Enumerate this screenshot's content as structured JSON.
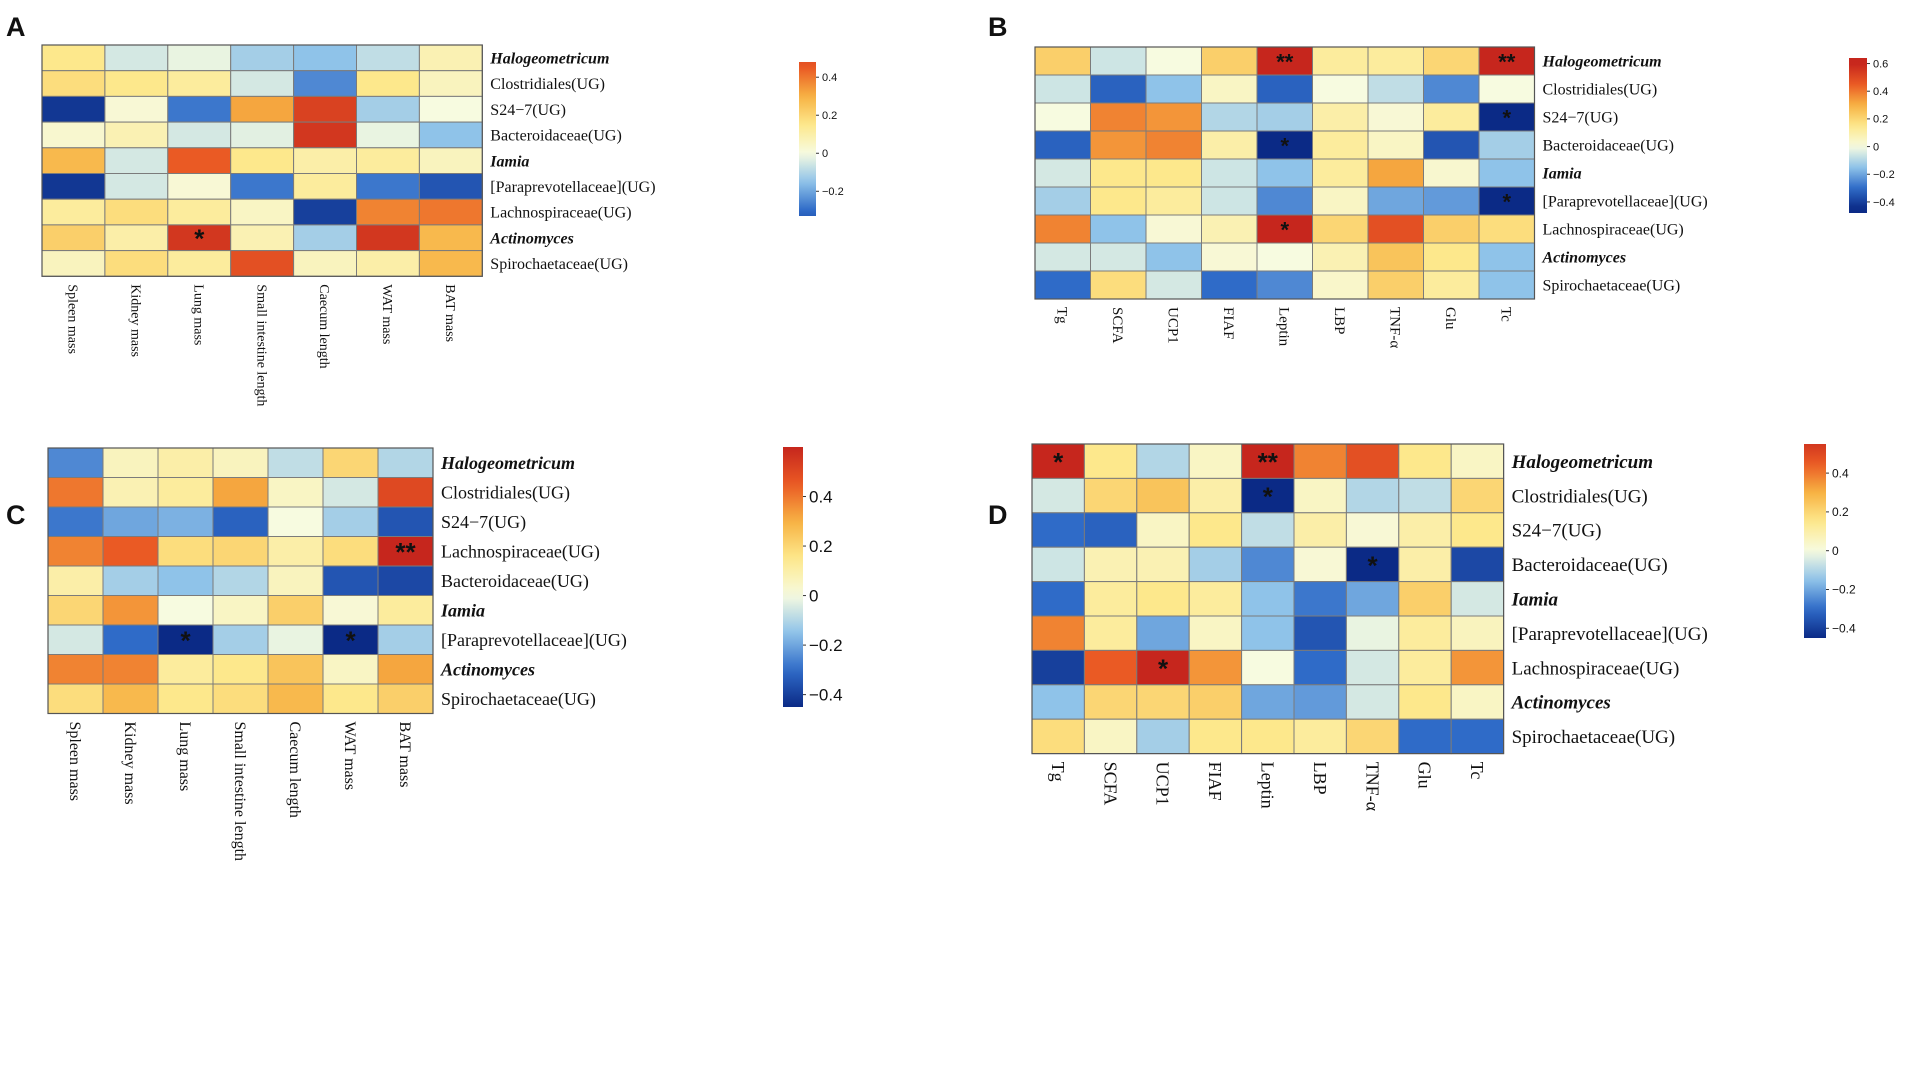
{
  "colors": {
    "stops": [
      {
        "v": -0.45,
        "c": "#0b2a86"
      },
      {
        "v": -0.3,
        "c": "#2f6bc8"
      },
      {
        "v": -0.15,
        "c": "#8fc3e9"
      },
      {
        "v": 0.0,
        "c": "#f7fbe0"
      },
      {
        "v": 0.15,
        "c": "#fde88c"
      },
      {
        "v": 0.3,
        "c": "#f7b243"
      },
      {
        "v": 0.45,
        "c": "#ea5a24"
      },
      {
        "v": 0.6,
        "c": "#c6261d"
      }
    ],
    "border": "#7b7b7b"
  },
  "chart_data": [
    {
      "type": "heatmap",
      "panel": "A",
      "rows": [
        "Halogeometricum",
        "Clostridiales(UG)",
        "S24−7(UG)",
        "Bacteroidaceae(UG)",
        "Iamia",
        "[Paraprevotellaceae](UG)",
        "Lachnospiraceae(UG)",
        "Actinomyces",
        "Spirochaetaceae(UG)"
      ],
      "italic_rows": [
        "Halogeometricum",
        "Iamia",
        "Actinomyces"
      ],
      "columns": [
        "Spleen mass",
        "Kidney mass",
        "Lung mass",
        "Small intestine length",
        "Caecum length",
        "WAT mass",
        "BAT mass"
      ],
      "values": [
        [
          0.15,
          -0.05,
          -0.02,
          -0.12,
          -0.15,
          -0.08,
          0.08
        ],
        [
          0.18,
          0.15,
          0.12,
          -0.05,
          -0.25,
          0.15,
          0.06
        ],
        [
          -0.42,
          0.02,
          -0.28,
          0.32,
          0.52,
          -0.12,
          0.0
        ],
        [
          0.03,
          0.08,
          -0.05,
          -0.03,
          0.55,
          -0.02,
          -0.15
        ],
        [
          0.28,
          -0.05,
          0.45,
          0.15,
          0.1,
          0.12,
          0.06
        ],
        [
          -0.42,
          -0.05,
          0.02,
          -0.28,
          0.12,
          -0.28,
          -0.35
        ],
        [
          0.12,
          0.18,
          0.12,
          0.05,
          -0.4,
          0.38,
          0.4
        ],
        [
          0.22,
          0.1,
          0.55,
          0.08,
          -0.12,
          0.55,
          0.28
        ],
        [
          0.06,
          0.18,
          0.12,
          0.48,
          0.06,
          0.1,
          0.28
        ]
      ],
      "stars": [
        [
          7,
          2,
          "*"
        ]
      ],
      "colorbar": {
        "ticks": [
          0.4,
          0.2,
          0,
          -0.2
        ],
        "tick_labels": [
          "0.4",
          "0.2",
          "0",
          "−0.2"
        ],
        "range": [
          -0.33,
          0.48
        ]
      }
    },
    {
      "type": "heatmap",
      "panel": "B",
      "rows": [
        "Halogeometricum",
        "Clostridiales(UG)",
        "S24−7(UG)",
        "Bacteroidaceae(UG)",
        "Iamia",
        "[Paraprevotellaceae](UG)",
        "Lachnospiraceae(UG)",
        "Actinomyces",
        "Spirochaetaceae(UG)"
      ],
      "italic_rows": [
        "Halogeometricum",
        "Iamia",
        "Actinomyces"
      ],
      "columns": [
        "Tg",
        "SCFA",
        "UCP1",
        "FIAF",
        "Leptin",
        "LBP",
        "TNF-α",
        "Glu",
        "Tc"
      ],
      "values": [
        [
          0.22,
          -0.06,
          0.0,
          0.22,
          0.6,
          0.12,
          0.12,
          0.2,
          0.6
        ],
        [
          -0.06,
          -0.32,
          -0.15,
          0.05,
          -0.32,
          0.0,
          -0.08,
          -0.25,
          0.0
        ],
        [
          0.0,
          0.38,
          0.35,
          -0.1,
          -0.12,
          0.1,
          0.02,
          0.12,
          -0.45
        ],
        [
          -0.32,
          0.35,
          0.38,
          0.1,
          -0.45,
          0.12,
          0.05,
          -0.35,
          -0.12
        ],
        [
          -0.05,
          0.15,
          0.15,
          -0.06,
          -0.15,
          0.12,
          0.32,
          0.03,
          -0.15
        ],
        [
          -0.12,
          0.15,
          0.12,
          -0.06,
          -0.25,
          0.05,
          -0.2,
          -0.22,
          -0.45
        ],
        [
          0.38,
          -0.15,
          0.02,
          0.08,
          0.6,
          0.2,
          0.48,
          0.22,
          0.18
        ],
        [
          -0.05,
          -0.05,
          -0.15,
          0.02,
          0.0,
          0.08,
          0.25,
          0.15,
          -0.15
        ],
        [
          -0.3,
          0.18,
          -0.05,
          -0.3,
          -0.25,
          0.04,
          0.22,
          0.12,
          -0.15
        ]
      ],
      "stars": [
        [
          0,
          4,
          "**"
        ],
        [
          0,
          8,
          "**"
        ],
        [
          2,
          8,
          "*"
        ],
        [
          3,
          4,
          "*"
        ],
        [
          5,
          8,
          "*"
        ],
        [
          6,
          4,
          "*"
        ]
      ],
      "colorbar": {
        "ticks": [
          0.6,
          0.4,
          0.2,
          0,
          -0.2,
          -0.4
        ],
        "tick_labels": [
          "0.6",
          "0.4",
          "0.2",
          "0",
          "−0.2",
          "−0.4"
        ],
        "range": [
          -0.48,
          0.64
        ]
      }
    },
    {
      "type": "heatmap",
      "panel": "C",
      "rows": [
        "Halogeometricum",
        "Clostridiales(UG)",
        "S24−7(UG)",
        "Lachnospiraceae(UG)",
        "Bacteroidaceae(UG)",
        "Iamia",
        "[Paraprevotellaceae](UG)",
        "Actinomyces",
        "Spirochaetaceae(UG)"
      ],
      "italic_rows": [
        "Halogeometricum",
        "Iamia",
        "Actinomyces"
      ],
      "columns": [
        "Spleen mass",
        "Kidney mass",
        "Lung mass",
        "Small intestine length",
        "Caecum length",
        "WAT mass",
        "BAT mass"
      ],
      "values": [
        [
          -0.25,
          0.06,
          0.1,
          0.06,
          -0.08,
          0.2,
          -0.1
        ],
        [
          0.4,
          0.08,
          0.12,
          0.32,
          0.05,
          -0.05,
          0.5
        ],
        [
          -0.28,
          -0.2,
          -0.18,
          -0.32,
          0.0,
          -0.12,
          -0.35
        ],
        [
          0.38,
          0.45,
          0.18,
          0.2,
          0.1,
          0.18,
          0.6
        ],
        [
          0.1,
          -0.12,
          -0.15,
          -0.1,
          0.06,
          -0.35,
          -0.38
        ],
        [
          0.2,
          0.35,
          0.0,
          0.05,
          0.22,
          0.02,
          0.12
        ],
        [
          -0.05,
          -0.3,
          -0.45,
          -0.12,
          -0.02,
          -0.45,
          -0.12
        ],
        [
          0.38,
          0.38,
          0.12,
          0.15,
          0.25,
          0.05,
          0.32
        ],
        [
          0.18,
          0.28,
          0.15,
          0.18,
          0.28,
          0.15,
          0.22
        ]
      ],
      "stars": [
        [
          3,
          6,
          "**"
        ],
        [
          6,
          2,
          "*"
        ],
        [
          6,
          5,
          "*"
        ]
      ],
      "colorbar": {
        "ticks": [
          0.4,
          0.2,
          0,
          -0.2,
          -0.4
        ],
        "tick_labels": [
          "0.4",
          "0.2",
          "0",
          "−0.2",
          "−0.4"
        ],
        "range": [
          -0.45,
          0.6
        ]
      }
    },
    {
      "type": "heatmap",
      "panel": "D",
      "rows": [
        "Halogeometricum",
        "Clostridiales(UG)",
        "S24−7(UG)",
        "Bacteroidaceae(UG)",
        "Iamia",
        "[Paraprevotellaceae](UG)",
        "Lachnospiraceae(UG)",
        "Actinomyces",
        "Spirochaetaceae(UG)"
      ],
      "italic_rows": [
        "Halogeometricum",
        "Iamia",
        "Actinomyces"
      ],
      "columns": [
        "Tg",
        "SCFA",
        "UCP1",
        "FIAF",
        "Leptin",
        "LBP",
        "TNF-α",
        "Glu",
        "Tc"
      ],
      "values": [
        [
          0.6,
          0.15,
          -0.1,
          0.05,
          0.6,
          0.38,
          0.48,
          0.15,
          0.05
        ],
        [
          -0.05,
          0.2,
          0.25,
          0.1,
          -0.45,
          0.05,
          -0.1,
          -0.08,
          0.2
        ],
        [
          -0.3,
          -0.32,
          0.05,
          0.15,
          -0.08,
          0.1,
          0.02,
          0.1,
          0.15
        ],
        [
          -0.06,
          0.08,
          0.08,
          -0.12,
          -0.25,
          0.02,
          -0.45,
          0.1,
          -0.38
        ],
        [
          -0.3,
          0.12,
          0.15,
          0.12,
          -0.15,
          -0.28,
          -0.2,
          0.22,
          -0.05
        ],
        [
          0.38,
          0.12,
          -0.2,
          0.05,
          -0.15,
          -0.35,
          -0.02,
          0.12,
          0.06
        ],
        [
          -0.4,
          0.45,
          0.6,
          0.35,
          0.0,
          -0.3,
          -0.05,
          0.12,
          0.35
        ],
        [
          -0.15,
          0.2,
          0.2,
          0.22,
          -0.2,
          -0.22,
          -0.05,
          0.15,
          0.05
        ],
        [
          0.18,
          0.05,
          -0.12,
          0.15,
          0.15,
          0.12,
          0.2,
          -0.3,
          -0.3
        ]
      ],
      "stars": [
        [
          0,
          0,
          "*"
        ],
        [
          0,
          4,
          "**"
        ],
        [
          1,
          4,
          "*"
        ],
        [
          3,
          6,
          "*"
        ],
        [
          6,
          2,
          "*"
        ]
      ],
      "colorbar": {
        "ticks": [
          0.4,
          0.2,
          0,
          -0.2,
          -0.4
        ],
        "tick_labels": [
          "0.4",
          "0.2",
          "0",
          "−0.2",
          "−0.4"
        ],
        "range": [
          -0.45,
          0.55
        ]
      }
    }
  ]
}
